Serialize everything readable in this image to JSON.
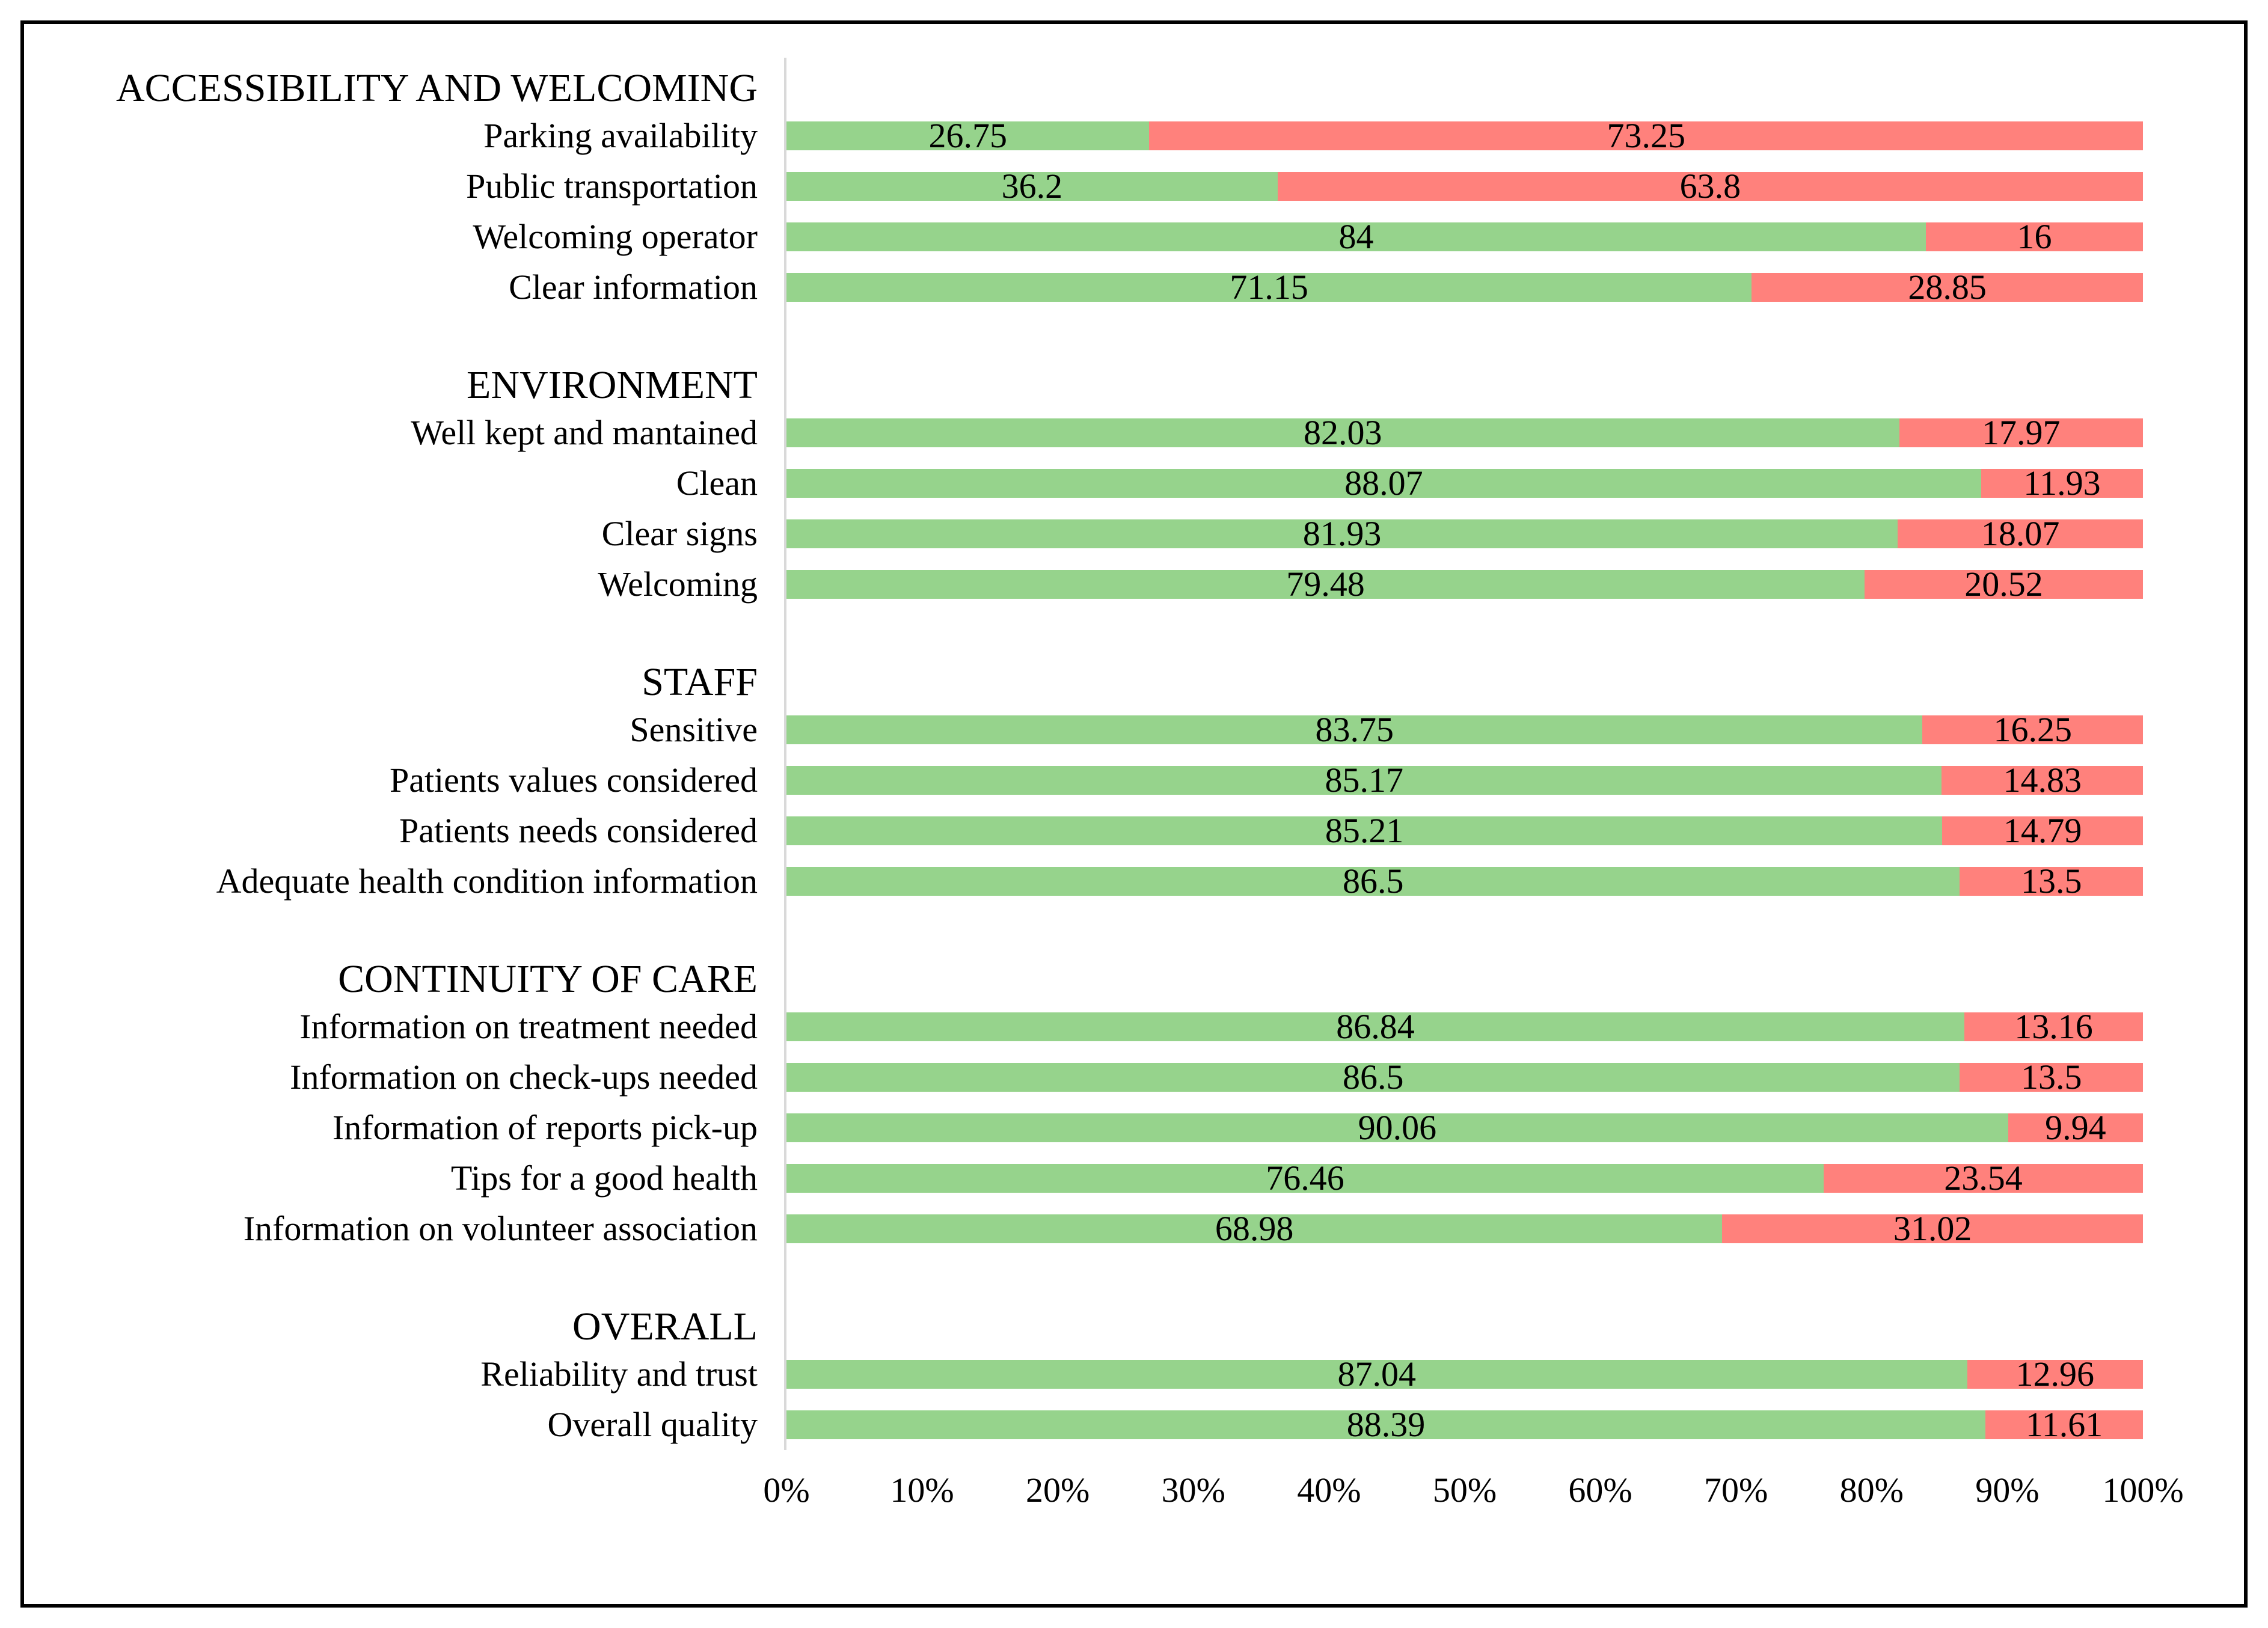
{
  "chart_data": {
    "type": "bar",
    "orientation": "horizontal",
    "stacked": true,
    "xlim": [
      0,
      100
    ],
    "grid": "off",
    "legend": "none",
    "x_ticks": [
      "0%",
      "10%",
      "20%",
      "30%",
      "40%",
      "50%",
      "60%",
      "70%",
      "80%",
      "90%",
      "100%"
    ],
    "colors": {
      "positive_segment": "#96D38C",
      "negative_segment": "#FF817C",
      "axis_line": "#D9D9D9",
      "frame_border": "#000000"
    },
    "series_names": [
      "positive",
      "negative"
    ],
    "groups": [
      {
        "header": "ACCESSIBILITY AND WELCOMING",
        "items": [
          {
            "label": "Parking availability",
            "positive": 26.75,
            "negative": 73.25
          },
          {
            "label": "Public transportation",
            "positive": 36.2,
            "negative": 63.8
          },
          {
            "label": "Welcoming operator",
            "positive": 84,
            "negative": 16
          },
          {
            "label": "Clear information",
            "positive": 71.15,
            "negative": 28.85
          }
        ]
      },
      {
        "header": "ENVIRONMENT",
        "items": [
          {
            "label": "Well kept and mantained",
            "positive": 82.03,
            "negative": 17.97
          },
          {
            "label": "Clean",
            "positive": 88.07,
            "negative": 11.93
          },
          {
            "label": "Clear signs",
            "positive": 81.93,
            "negative": 18.07
          },
          {
            "label": "Welcoming",
            "positive": 79.48,
            "negative": 20.52
          }
        ]
      },
      {
        "header": "STAFF",
        "items": [
          {
            "label": "Sensitive",
            "positive": 83.75,
            "negative": 16.25
          },
          {
            "label": "Patients values considered",
            "positive": 85.17,
            "negative": 14.83
          },
          {
            "label": "Patients needs considered",
            "positive": 85.21,
            "negative": 14.79
          },
          {
            "label": "Adequate health condition information",
            "positive": 86.5,
            "negative": 13.5
          }
        ]
      },
      {
        "header": "CONTINUITY OF CARE",
        "items": [
          {
            "label": "Information on treatment needed",
            "positive": 86.84,
            "negative": 13.16
          },
          {
            "label": "Information on check-ups needed",
            "positive": 86.5,
            "negative": 13.5
          },
          {
            "label": "Information of reports pick-up",
            "positive": 90.06,
            "negative": 9.94
          },
          {
            "label": "Tips for a good health",
            "positive": 76.46,
            "negative": 23.54
          },
          {
            "label": "Information on volunteer association",
            "positive": 68.98,
            "negative": 31.02
          }
        ]
      },
      {
        "header": "OVERALL",
        "items": [
          {
            "label": "Reliability and trust",
            "positive": 87.04,
            "negative": 12.96
          },
          {
            "label": "Overall quality",
            "positive": 88.39,
            "negative": 11.61
          }
        ]
      }
    ]
  }
}
